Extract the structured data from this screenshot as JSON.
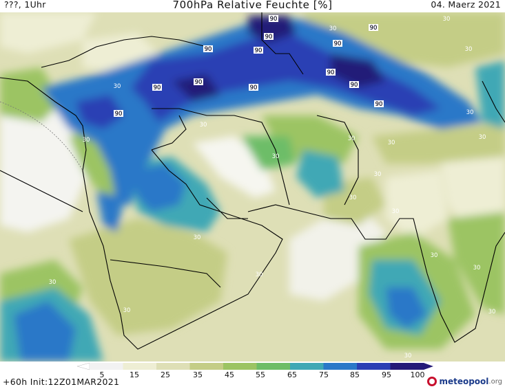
{
  "header": {
    "left": "???, 1Uhr",
    "title": "700hPa Relative Feuchte [%]",
    "date": "04. Maerz 2021"
  },
  "footer": {
    "init": "+60h Init:12Z01MAR2021",
    "logo_main": "meteopool",
    "logo_suffix": ".org"
  },
  "colorbar": {
    "ticks": [
      "5",
      "15",
      "25",
      "35",
      "45",
      "55",
      "65",
      "75",
      "85",
      "95",
      "100"
    ],
    "colors": [
      "#f2f2f2",
      "#eeeed4",
      "#dedfb6",
      "#c4cd86",
      "#9cc463",
      "#6dbd67",
      "#3fa8b5",
      "#2a78c8",
      "#2a3fb4",
      "#241a78"
    ]
  },
  "contour_labels": [
    {
      "text": "90"
    },
    {
      "text": "90"
    },
    {
      "text": "90"
    },
    {
      "text": "90"
    },
    {
      "text": "90"
    },
    {
      "text": "90"
    },
    {
      "text": "90"
    },
    {
      "text": "90"
    },
    {
      "text": "90"
    },
    {
      "text": "90"
    },
    {
      "text": "90"
    },
    {
      "text": "90"
    },
    {
      "text": "30"
    },
    {
      "text": "30"
    },
    {
      "text": "30"
    },
    {
      "text": "30"
    },
    {
      "text": "30"
    },
    {
      "text": "30"
    },
    {
      "text": "30"
    },
    {
      "text": "30"
    },
    {
      "text": "30"
    },
    {
      "text": "30"
    },
    {
      "text": "30"
    },
    {
      "text": "30"
    },
    {
      "text": "30"
    },
    {
      "text": "30"
    },
    {
      "text": "30"
    },
    {
      "text": "30"
    },
    {
      "text": "30"
    },
    {
      "text": "30"
    },
    {
      "text": "30"
    },
    {
      "text": "30"
    },
    {
      "text": "30"
    },
    {
      "text": "30"
    },
    {
      "text": "90"
    }
  ]
}
